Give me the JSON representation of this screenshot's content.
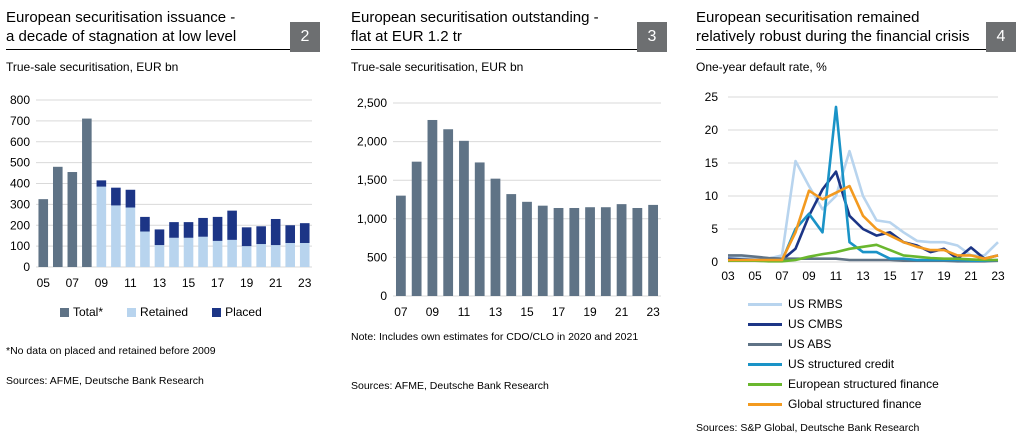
{
  "chart_data": [
    {
      "type": "bar",
      "number": "2",
      "title_line1": "European securitisation issuance -",
      "title_line2": "a decade of stagnation at low level",
      "subtitle": "True-sale securitisation, EUR bn",
      "categories": [
        "05",
        "06",
        "07",
        "08",
        "09",
        "10",
        "11",
        "12",
        "13",
        "14",
        "15",
        "16",
        "17",
        "18",
        "19",
        "20",
        "21",
        "22",
        "23"
      ],
      "tick_labels": [
        "05",
        "07",
        "09",
        "11",
        "13",
        "15",
        "17",
        "19",
        "21",
        "23"
      ],
      "yticks": [
        0,
        100,
        200,
        300,
        400,
        500,
        600,
        700,
        800
      ],
      "ylim": [
        0,
        800
      ],
      "series": [
        {
          "name": "Total*",
          "values": [
            325,
            480,
            455,
            711,
            null,
            null,
            null,
            null,
            null,
            null,
            null,
            null,
            null,
            null,
            null,
            null,
            null,
            null,
            null
          ]
        },
        {
          "name": "Retained",
          "values": [
            null,
            null,
            null,
            null,
            385,
            295,
            285,
            170,
            105,
            140,
            140,
            145,
            125,
            130,
            100,
            110,
            105,
            115,
            115
          ]
        },
        {
          "name": "Placed",
          "values": [
            null,
            null,
            null,
            null,
            30,
            85,
            85,
            70,
            75,
            75,
            75,
            90,
            115,
            140,
            90,
            85,
            125,
            85,
            95
          ]
        }
      ],
      "colors": {
        "Total*": "#5f7386",
        "Retained": "#b8d4ee",
        "Placed": "#1c3586"
      },
      "legend": [
        "Total*",
        "Retained",
        "Placed"
      ],
      "footnote": "*No data on placed and retained before 2009",
      "sources": "Sources: AFME, Deutsche Bank Research"
    },
    {
      "type": "bar",
      "number": "3",
      "title_line1": "European securitisation outstanding -",
      "title_line2": "flat at EUR 1.2 tr",
      "subtitle": "True-sale securitisation, EUR bn",
      "categories": [
        "07",
        "08",
        "09",
        "10",
        "11",
        "12",
        "13",
        "14",
        "15",
        "16",
        "17",
        "18",
        "19",
        "20",
        "21",
        "22",
        "23"
      ],
      "tick_labels": [
        "07",
        "09",
        "11",
        "13",
        "15",
        "17",
        "19",
        "21",
        "23"
      ],
      "yticks": [
        0,
        500,
        1000,
        1500,
        2000,
        2500
      ],
      "ytick_labels": [
        "0",
        "500",
        "1,000",
        "1,500",
        "2,000",
        "2,500"
      ],
      "ylim": [
        0,
        2500
      ],
      "values": [
        1300,
        1740,
        2280,
        2160,
        2010,
        1730,
        1520,
        1320,
        1220,
        1170,
        1140,
        1140,
        1150,
        1150,
        1190,
        1140,
        1180
      ],
      "color": "#5f7386",
      "note": "Note: Includes own estimates for CDO/CLO in 2020 and 2021",
      "sources": "Sources: AFME, Deutsche Bank Research"
    },
    {
      "type": "line",
      "number": "4",
      "title_line1": "European securitisation remained",
      "title_line2": "relatively robust during the financial crisis",
      "subtitle": "One-year default rate, %",
      "x": [
        "03",
        "04",
        "05",
        "06",
        "07",
        "08",
        "09",
        "10",
        "11",
        "12",
        "13",
        "14",
        "15",
        "16",
        "17",
        "18",
        "19",
        "20",
        "21",
        "22",
        "23"
      ],
      "tick_labels": [
        "03",
        "05",
        "07",
        "09",
        "11",
        "13",
        "15",
        "17",
        "19",
        "21",
        "23"
      ],
      "yticks": [
        0,
        5,
        10,
        15,
        20,
        25
      ],
      "ylim": [
        0,
        25
      ],
      "series": [
        {
          "name": "US RMBS",
          "color": "#b8d4ee",
          "values": [
            0.8,
            0.6,
            0.5,
            0.5,
            1.0,
            15.3,
            11.5,
            8.0,
            10.0,
            16.8,
            10.0,
            6.3,
            6.0,
            4.5,
            3.2,
            3.0,
            3.0,
            2.5,
            1.0,
            1.0,
            3.0
          ]
        },
        {
          "name": "US CMBS",
          "color": "#1c3586",
          "values": [
            0.5,
            0.4,
            0.3,
            0.3,
            0.3,
            2.0,
            7.0,
            11.0,
            13.7,
            7.0,
            5.0,
            4.0,
            4.5,
            3.0,
            2.5,
            1.5,
            2.0,
            0.5,
            2.2,
            0.5,
            1.0
          ]
        },
        {
          "name": "US ABS",
          "color": "#5f7386",
          "values": [
            1.0,
            1.0,
            0.8,
            0.6,
            0.5,
            0.5,
            0.5,
            0.5,
            0.5,
            0.3,
            0.3,
            0.3,
            0.3,
            0.2,
            0.2,
            0.2,
            0.2,
            0.1,
            0.1,
            0.1,
            0.2
          ]
        },
        {
          "name": "US structured credit",
          "color": "#1a93c7",
          "values": [
            0.3,
            0.3,
            0.2,
            0.2,
            0.2,
            5.0,
            7.3,
            4.5,
            23.5,
            3.0,
            1.5,
            1.5,
            0.5,
            0.5,
            0.3,
            0.3,
            0.3,
            0.3,
            0.2,
            0.2,
            0.3
          ]
        },
        {
          "name": "European structured finance",
          "color": "#6ab72e",
          "values": [
            0.2,
            0.2,
            0.2,
            0.1,
            0.1,
            0.3,
            0.8,
            1.2,
            1.5,
            2.0,
            2.3,
            2.6,
            1.8,
            1.0,
            0.8,
            0.6,
            0.5,
            0.5,
            0.4,
            0.3,
            0.3
          ]
        },
        {
          "name": "Global structured finance",
          "color": "#f39a1f",
          "values": [
            0.3,
            0.3,
            0.3,
            0.3,
            0.3,
            4.5,
            10.8,
            9.5,
            10.5,
            11.5,
            7.0,
            5.0,
            4.0,
            3.0,
            2.3,
            1.8,
            1.8,
            1.0,
            1.0,
            0.5,
            1.0
          ]
        }
      ],
      "sources": "Sources: S&P Global, Deutsche Bank Research"
    }
  ]
}
